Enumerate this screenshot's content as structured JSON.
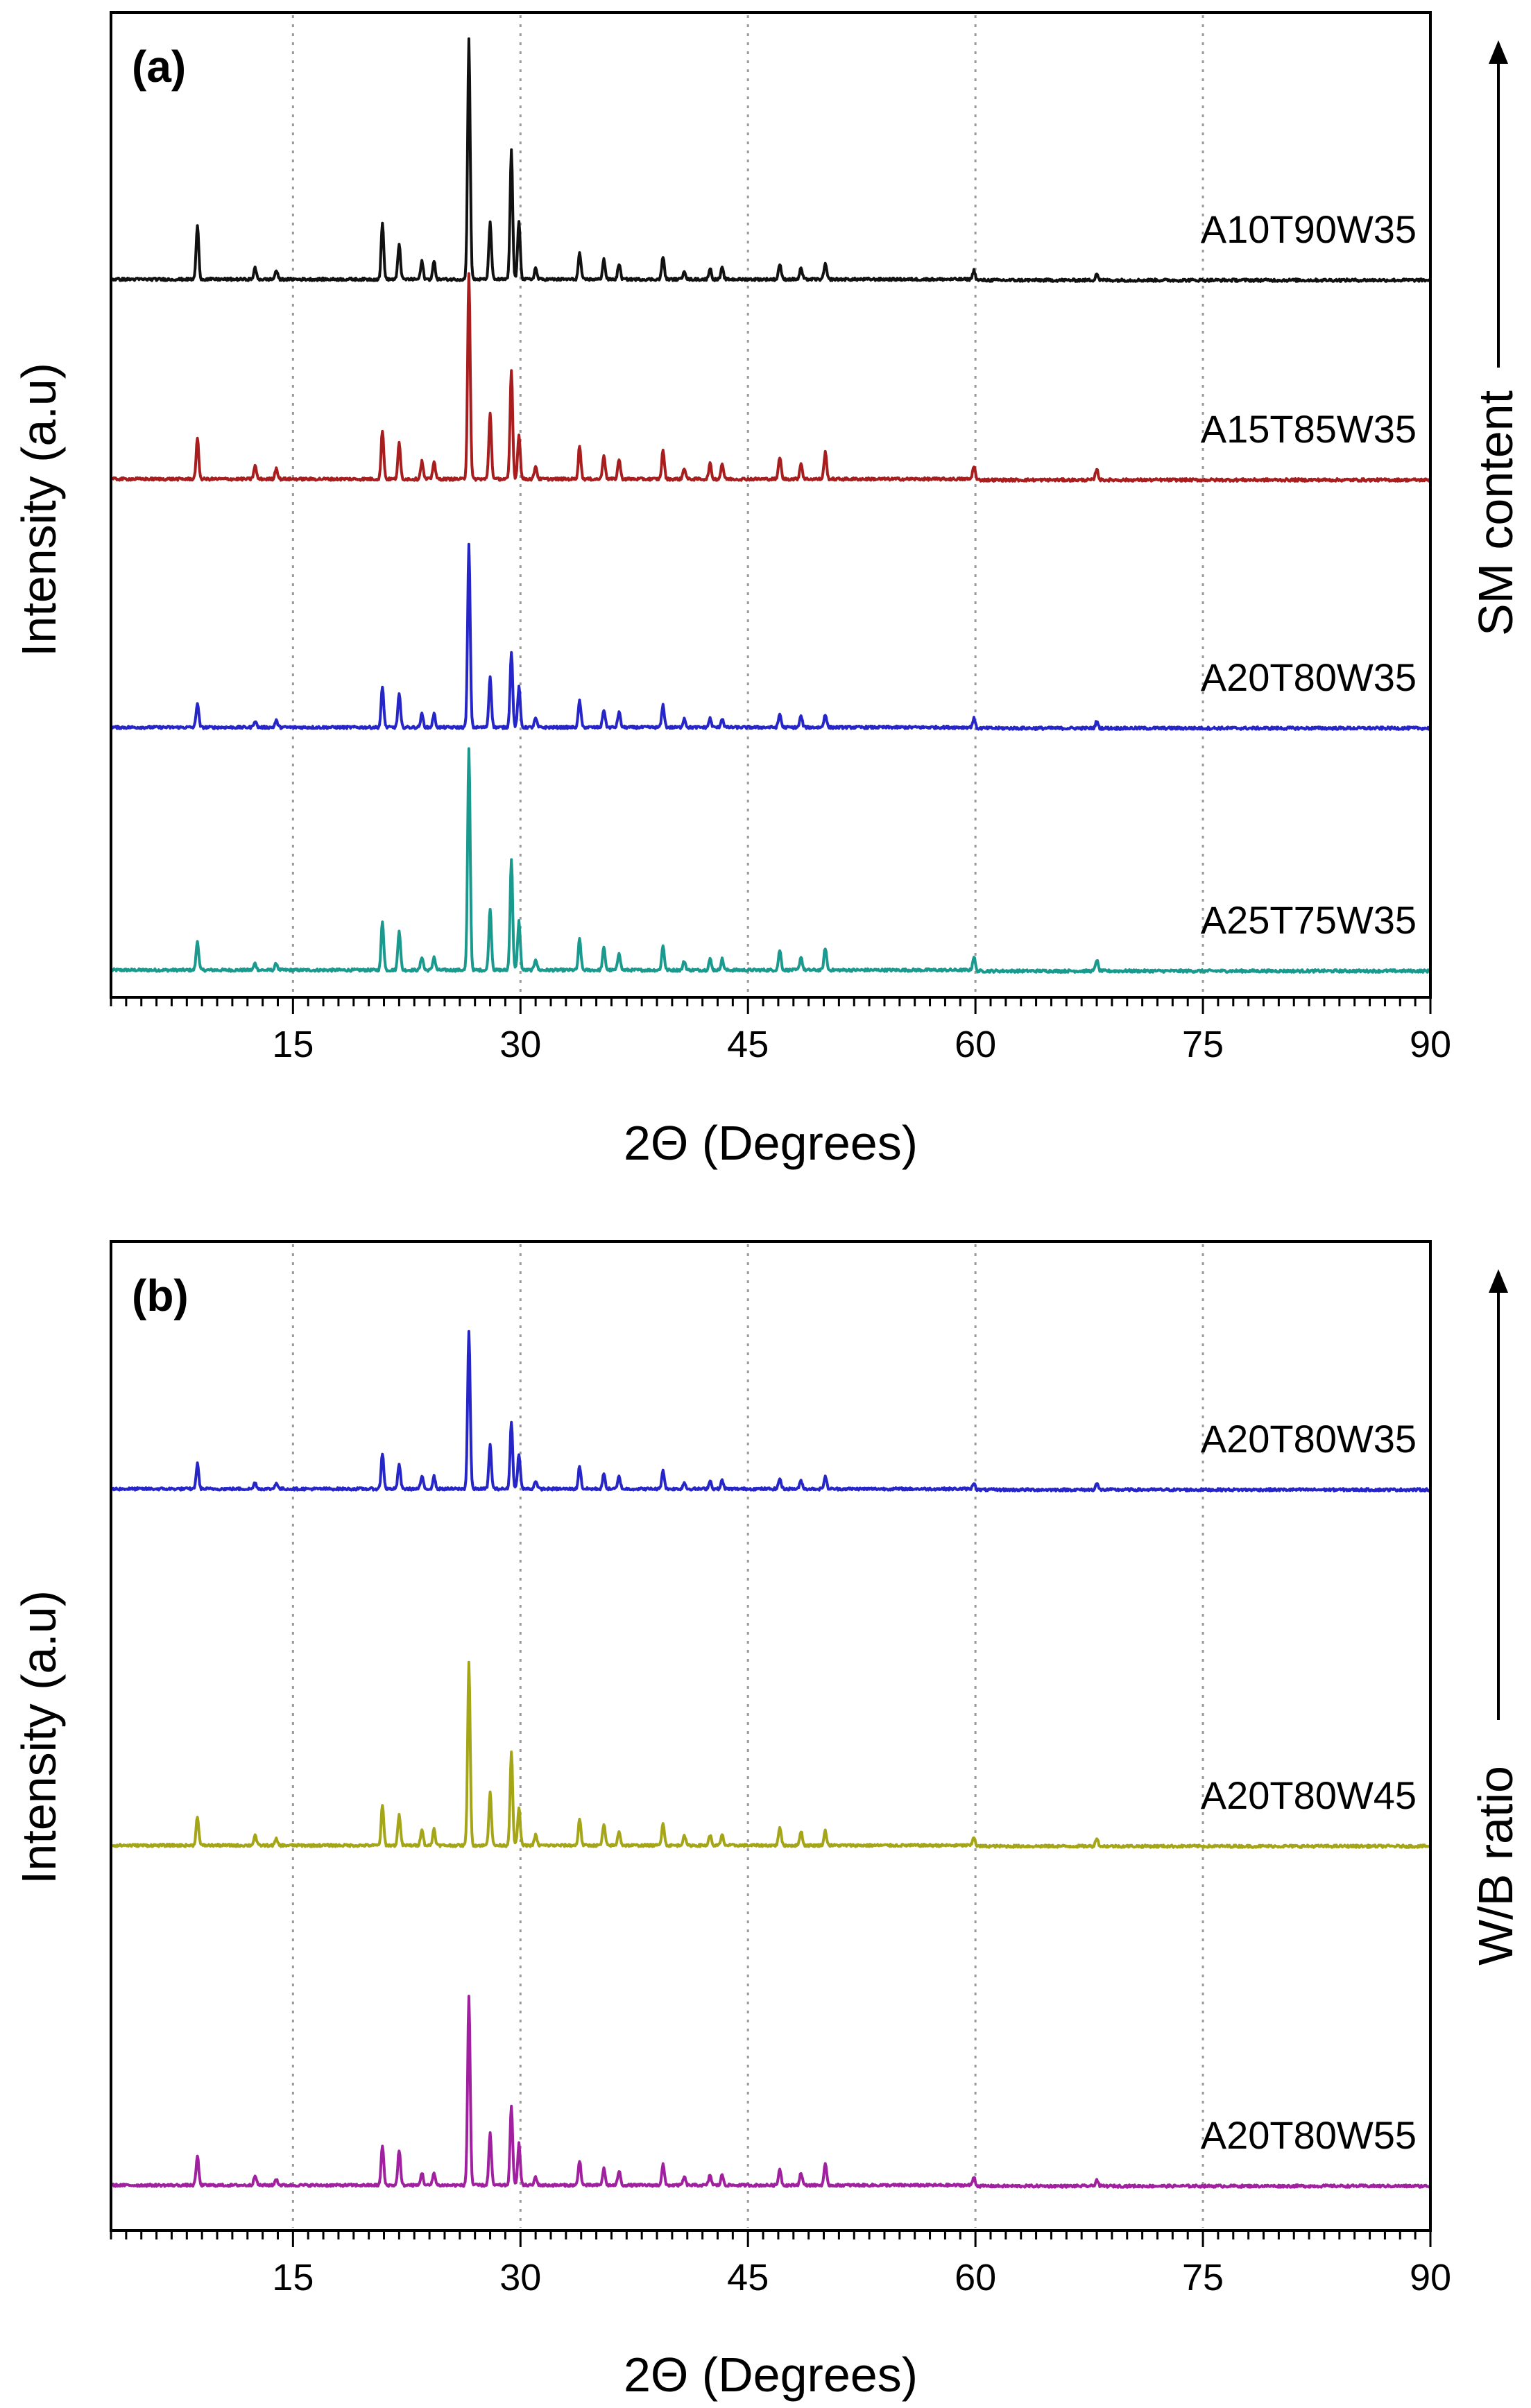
{
  "chart_data": [
    {
      "type": "line",
      "panel_label": "(a)",
      "xlabel": "2Θ (Degrees)",
      "ylabel": "Intensity (a.u)",
      "side_label": "SM content",
      "xlim": [
        3,
        90
      ],
      "xticks": [
        15,
        30,
        45,
        60,
        75,
        90
      ],
      "grid": "vertical dotted at major ticks",
      "series": [
        {
          "name": "A25T75W35",
          "color": "#1a9a8f",
          "offset": 3,
          "peaks": [
            [
              8.7,
              0.13
            ],
            [
              12.5,
              0.03
            ],
            [
              13.9,
              0.03
            ],
            [
              20.9,
              0.22
            ],
            [
              22.0,
              0.18
            ],
            [
              23.5,
              0.06
            ],
            [
              24.3,
              0.06
            ],
            [
              26.6,
              1.0
            ],
            [
              28.0,
              0.28
            ],
            [
              29.4,
              0.5
            ],
            [
              29.9,
              0.22
            ],
            [
              31.0,
              0.05
            ],
            [
              33.9,
              0.14
            ],
            [
              35.5,
              0.1
            ],
            [
              36.5,
              0.08
            ],
            [
              39.4,
              0.11
            ],
            [
              40.8,
              0.04
            ],
            [
              42.5,
              0.05
            ],
            [
              43.3,
              0.05
            ],
            [
              47.1,
              0.09
            ],
            [
              48.5,
              0.06
            ],
            [
              50.1,
              0.1
            ],
            [
              59.9,
              0.06
            ],
            [
              68.0,
              0.05
            ]
          ]
        },
        {
          "name": "A20T80W35",
          "color": "#2626c8",
          "offset": 2,
          "peaks": [
            [
              8.7,
              0.11
            ],
            [
              12.5,
              0.03
            ],
            [
              13.9,
              0.03
            ],
            [
              20.9,
              0.18
            ],
            [
              22.0,
              0.15
            ],
            [
              23.5,
              0.06
            ],
            [
              24.3,
              0.06
            ],
            [
              26.6,
              0.82
            ],
            [
              28.0,
              0.23
            ],
            [
              29.4,
              0.34
            ],
            [
              29.9,
              0.18
            ],
            [
              31.0,
              0.04
            ],
            [
              33.9,
              0.12
            ],
            [
              35.5,
              0.08
            ],
            [
              36.5,
              0.07
            ],
            [
              39.4,
              0.1
            ],
            [
              40.8,
              0.04
            ],
            [
              42.5,
              0.04
            ],
            [
              43.3,
              0.04
            ],
            [
              47.1,
              0.06
            ],
            [
              48.5,
              0.05
            ],
            [
              50.1,
              0.06
            ],
            [
              59.9,
              0.04
            ],
            [
              68.0,
              0.03
            ]
          ]
        },
        {
          "name": "A15T85W35",
          "color": "#a81e1e",
          "offset": 1,
          "peaks": [
            [
              8.7,
              0.18
            ],
            [
              12.5,
              0.06
            ],
            [
              13.9,
              0.05
            ],
            [
              20.9,
              0.22
            ],
            [
              22.0,
              0.16
            ],
            [
              23.5,
              0.08
            ],
            [
              24.3,
              0.08
            ],
            [
              26.6,
              0.93
            ],
            [
              28.0,
              0.3
            ],
            [
              29.4,
              0.49
            ],
            [
              29.9,
              0.2
            ],
            [
              31.0,
              0.06
            ],
            [
              33.9,
              0.15
            ],
            [
              35.5,
              0.11
            ],
            [
              36.5,
              0.09
            ],
            [
              39.4,
              0.13
            ],
            [
              40.8,
              0.05
            ],
            [
              42.5,
              0.07
            ],
            [
              43.3,
              0.07
            ],
            [
              47.1,
              0.1
            ],
            [
              48.5,
              0.07
            ],
            [
              50.1,
              0.12
            ],
            [
              59.9,
              0.06
            ],
            [
              68.0,
              0.05
            ]
          ]
        },
        {
          "name": "A10T90W35",
          "color": "#111111",
          "offset": 0,
          "peaks": [
            [
              8.7,
              0.24
            ],
            [
              12.5,
              0.05
            ],
            [
              13.9,
              0.04
            ],
            [
              20.9,
              0.25
            ],
            [
              22.0,
              0.16
            ],
            [
              23.5,
              0.08
            ],
            [
              24.3,
              0.08
            ],
            [
              26.6,
              1.08
            ],
            [
              28.0,
              0.26
            ],
            [
              29.4,
              0.58
            ],
            [
              29.9,
              0.26
            ],
            [
              31.0,
              0.05
            ],
            [
              33.9,
              0.12
            ],
            [
              35.5,
              0.09
            ],
            [
              36.5,
              0.07
            ],
            [
              39.4,
              0.1
            ],
            [
              40.8,
              0.04
            ],
            [
              42.5,
              0.05
            ],
            [
              43.3,
              0.05
            ],
            [
              47.1,
              0.07
            ],
            [
              48.5,
              0.05
            ],
            [
              50.1,
              0.07
            ],
            [
              59.9,
              0.04
            ],
            [
              68.0,
              0.03
            ]
          ]
        }
      ]
    },
    {
      "type": "line",
      "panel_label": "(b)",
      "xlabel": "2Θ (Degrees)",
      "ylabel": "Intensity (a.u)",
      "side_label": "W/B ratio",
      "xlim": [
        3,
        90
      ],
      "xticks": [
        15,
        30,
        45,
        60,
        75,
        90
      ],
      "grid": "vertical dotted at major ticks",
      "series": [
        {
          "name": "A20T80W55",
          "color": "#a020a0",
          "offset": 2,
          "peaks": [
            [
              8.7,
              0.14
            ],
            [
              12.5,
              0.05
            ],
            [
              13.9,
              0.03
            ],
            [
              20.9,
              0.19
            ],
            [
              22.0,
              0.17
            ],
            [
              23.5,
              0.06
            ],
            [
              24.3,
              0.06
            ],
            [
              26.6,
              0.91
            ],
            [
              28.0,
              0.25
            ],
            [
              29.4,
              0.38
            ],
            [
              29.9,
              0.2
            ],
            [
              31.0,
              0.04
            ],
            [
              33.9,
              0.12
            ],
            [
              35.5,
              0.08
            ],
            [
              36.5,
              0.07
            ],
            [
              39.4,
              0.1
            ],
            [
              40.8,
              0.04
            ],
            [
              42.5,
              0.05
            ],
            [
              43.3,
              0.05
            ],
            [
              47.1,
              0.08
            ],
            [
              48.5,
              0.06
            ],
            [
              50.1,
              0.1
            ],
            [
              59.9,
              0.04
            ],
            [
              68.0,
              0.03
            ]
          ]
        },
        {
          "name": "A20T80W45",
          "color": "#a5a518",
          "offset": 1,
          "peaks": [
            [
              8.7,
              0.14
            ],
            [
              12.5,
              0.05
            ],
            [
              13.9,
              0.03
            ],
            [
              20.9,
              0.19
            ],
            [
              22.0,
              0.15
            ],
            [
              23.5,
              0.08
            ],
            [
              24.3,
              0.08
            ],
            [
              26.6,
              0.88
            ],
            [
              28.0,
              0.26
            ],
            [
              29.4,
              0.45
            ],
            [
              29.9,
              0.18
            ],
            [
              31.0,
              0.05
            ],
            [
              33.9,
              0.13
            ],
            [
              35.5,
              0.1
            ],
            [
              36.5,
              0.07
            ],
            [
              39.4,
              0.11
            ],
            [
              40.8,
              0.05
            ],
            [
              42.5,
              0.05
            ],
            [
              43.3,
              0.05
            ],
            [
              47.1,
              0.09
            ],
            [
              48.5,
              0.07
            ],
            [
              50.1,
              0.07
            ],
            [
              59.9,
              0.04
            ],
            [
              68.0,
              0.04
            ]
          ]
        },
        {
          "name": "A20T80W35",
          "color": "#2626c8",
          "offset": 0,
          "peaks": [
            [
              8.7,
              0.12
            ],
            [
              12.5,
              0.03
            ],
            [
              13.9,
              0.03
            ],
            [
              20.9,
              0.17
            ],
            [
              22.0,
              0.12
            ],
            [
              23.5,
              0.06
            ],
            [
              24.3,
              0.06
            ],
            [
              26.6,
              0.76
            ],
            [
              28.0,
              0.21
            ],
            [
              29.4,
              0.32
            ],
            [
              29.9,
              0.17
            ],
            [
              31.0,
              0.04
            ],
            [
              33.9,
              0.11
            ],
            [
              35.5,
              0.07
            ],
            [
              36.5,
              0.06
            ],
            [
              39.4,
              0.09
            ],
            [
              40.8,
              0.03
            ],
            [
              42.5,
              0.04
            ],
            [
              43.3,
              0.04
            ],
            [
              47.1,
              0.05
            ],
            [
              48.5,
              0.04
            ],
            [
              50.1,
              0.06
            ],
            [
              59.9,
              0.03
            ],
            [
              68.0,
              0.03
            ]
          ]
        }
      ]
    }
  ]
}
